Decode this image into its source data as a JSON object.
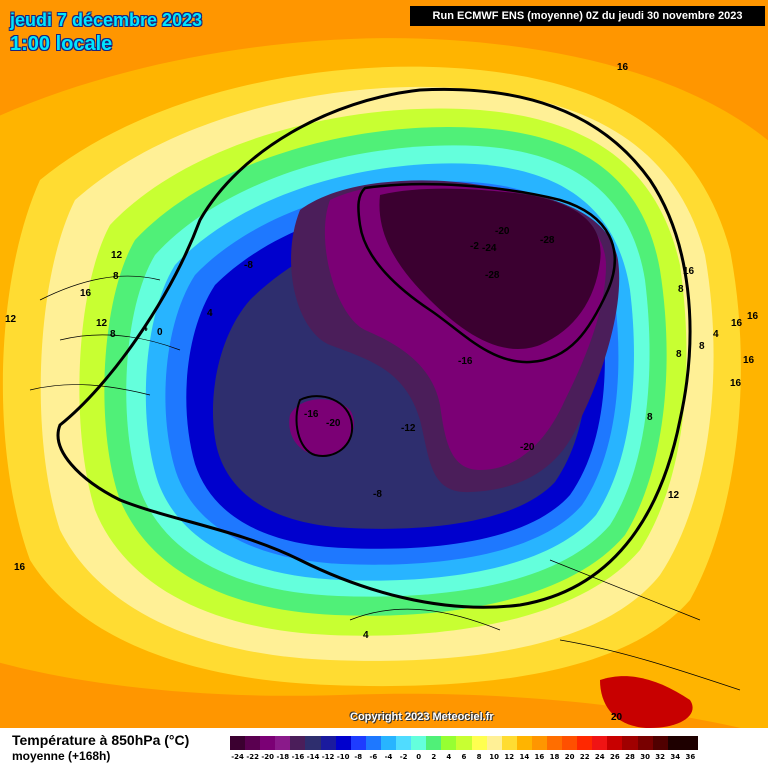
{
  "header": {
    "date": "jeudi 7 décembre 2023",
    "time": "1:00 locale",
    "run": "Run ECMWF ENS (moyenne) 0Z du jeudi 30 novembre 2023"
  },
  "copyright": "Copyright 2023 Meteociel.fr",
  "legend": {
    "title": "Température à 850hPa (°C)",
    "subtitle": "moyenne  (+168h)",
    "colors": [
      "#3b0030",
      "#5a0050",
      "#7b0075",
      "#8a1a8a",
      "#4b1e5a",
      "#2e2e6e",
      "#1a1a9e",
      "#0000cd",
      "#1e3cff",
      "#1e78ff",
      "#28b4ff",
      "#50dcff",
      "#64ffdc",
      "#50f078",
      "#96ff32",
      "#c8ff32",
      "#ffff50",
      "#fff096",
      "#ffdc32",
      "#ffb400",
      "#ff9600",
      "#ff6e00",
      "#ff5000",
      "#ff2800",
      "#f01414",
      "#c80000",
      "#a00000",
      "#780000",
      "#500000",
      "#1e0000"
    ],
    "ticks": [
      "-24",
      "-22",
      "-20",
      "-18",
      "-16",
      "-14",
      "-12",
      "-10",
      "-8",
      "-6",
      "-4",
      "-2",
      "0",
      "2",
      "4",
      "6",
      "8",
      "10",
      "12",
      "14",
      "16",
      "18",
      "20",
      "22",
      "24",
      "26",
      "28",
      "30",
      "32",
      "34",
      "36"
    ]
  },
  "map_labels": [
    "-20",
    "-24",
    "-28",
    "-2",
    "-28",
    "-16",
    "-16",
    "-20",
    "-12",
    "-20",
    "-8",
    "-8",
    "16",
    "16",
    "12",
    "8",
    "16",
    "12",
    "8",
    "4",
    "0",
    "12",
    "4",
    "8",
    "8",
    "16",
    "16",
    "16",
    "16",
    "4",
    "8",
    "8",
    "12",
    "16",
    "4",
    "20"
  ]
}
